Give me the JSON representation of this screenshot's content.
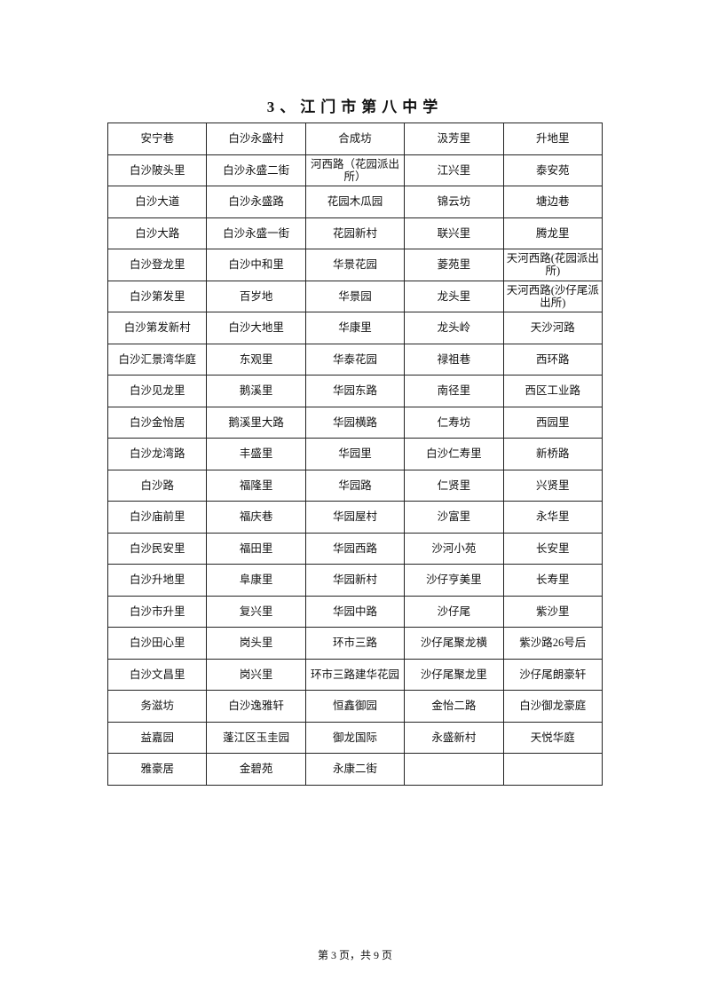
{
  "title": "3、江门市第八中学",
  "rows": [
    [
      "安宁巷",
      "白沙永盛村",
      "合成坊",
      "汲芳里",
      "升地里"
    ],
    [
      "白沙陂头里",
      "白沙永盛二街",
      "河西路（花园派出所）",
      "江兴里",
      "泰安苑"
    ],
    [
      "白沙大道",
      "白沙永盛路",
      "花园木瓜园",
      "锦云坊",
      "塘边巷"
    ],
    [
      "白沙大路",
      "白沙永盛一街",
      "花园新村",
      "联兴里",
      "腾龙里"
    ],
    [
      "白沙登龙里",
      "白沙中和里",
      "华景花园",
      "菱苑里",
      "天河西路(花园派出所)"
    ],
    [
      "白沙第发里",
      "百岁地",
      "华景园",
      "龙头里",
      "天河西路(沙仔尾派出所)"
    ],
    [
      "白沙第发新村",
      "白沙大地里",
      "华康里",
      "龙头岭",
      "天沙河路"
    ],
    [
      "白沙汇景湾华庭",
      "东观里",
      "华泰花园",
      "禄祖巷",
      "西环路"
    ],
    [
      "白沙见龙里",
      "鹅溪里",
      "华园东路",
      "南径里",
      "西区工业路"
    ],
    [
      "白沙金怡居",
      "鹅溪里大路",
      "华园横路",
      "仁寿坊",
      "西园里"
    ],
    [
      "白沙龙湾路",
      "丰盛里",
      "华园里",
      "白沙仁寿里",
      "新桥路"
    ],
    [
      "白沙路",
      "福隆里",
      "华园路",
      "仁贤里",
      "兴贤里"
    ],
    [
      "白沙庙前里",
      "福庆巷",
      "华园屋村",
      "沙富里",
      "永华里"
    ],
    [
      "白沙民安里",
      "福田里",
      "华园西路",
      "沙河小苑",
      "长安里"
    ],
    [
      "白沙升地里",
      "阜康里",
      "华园新村",
      "沙仔亨美里",
      "长寿里"
    ],
    [
      "白沙市升里",
      "复兴里",
      "华园中路",
      "沙仔尾",
      "紫沙里"
    ],
    [
      "白沙田心里",
      "岗头里",
      "环市三路",
      "沙仔尾聚龙横",
      "紫沙路26号后"
    ],
    [
      "白沙文昌里",
      "岗兴里",
      "环市三路建华花园",
      "沙仔尾聚龙里",
      "沙仔尾朗豪轩"
    ],
    [
      "务滋坊",
      "白沙逸雅轩",
      "恒鑫御园",
      "金怡二路",
      "白沙御龙豪庭"
    ],
    [
      "益嘉园",
      "蓬江区玉圭园",
      "御龙国际",
      "永盛新村",
      "天悦华庭"
    ],
    [
      "雅豪居",
      "金碧苑",
      "永康二街",
      "",
      ""
    ]
  ],
  "footer": "第 3 页，共 9 页"
}
